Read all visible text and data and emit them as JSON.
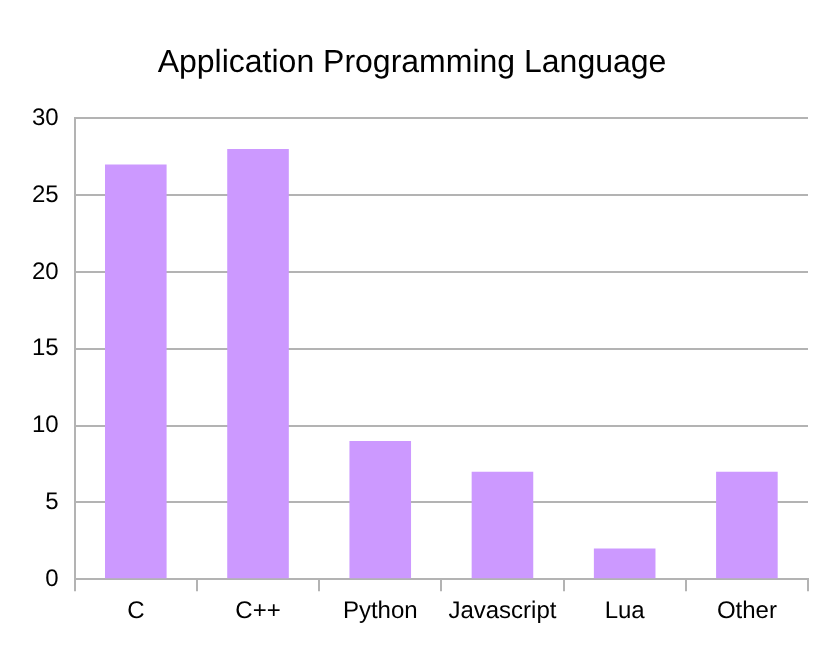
{
  "chart_data": {
    "type": "bar",
    "title": "Application Programming Language",
    "categories": [
      "C",
      "C++",
      "Python",
      "Javascript",
      "Lua",
      "Other"
    ],
    "values": [
      27,
      28,
      9,
      7,
      2,
      7
    ],
    "color": "#cc99ff",
    "ylim": [
      0,
      30
    ],
    "yticks": [
      0,
      5,
      10,
      15,
      20,
      25,
      30
    ],
    "grid": "y",
    "legend": false
  }
}
